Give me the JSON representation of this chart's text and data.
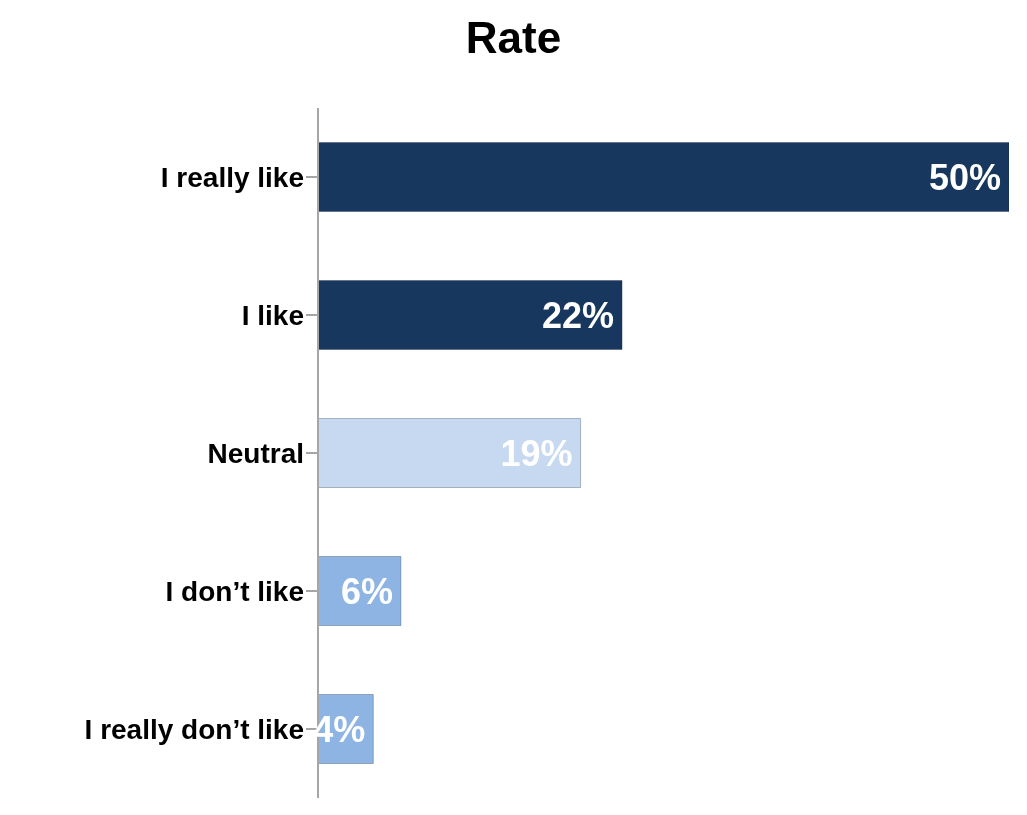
{
  "chart_data": {
    "type": "bar",
    "orientation": "horizontal",
    "title": "Rate",
    "categories": [
      "I really like",
      "I like",
      "Neutral",
      "I don’t like",
      "I really don’t like"
    ],
    "values": [
      50,
      22,
      19,
      6,
      4
    ],
    "colors": [
      "#17375e",
      "#17375e",
      "#c6d9f0",
      "#8eb4e3",
      "#8eb4e3"
    ],
    "value_labels": [
      "50%",
      "22%",
      "19%",
      "6%",
      "4%"
    ]
  }
}
